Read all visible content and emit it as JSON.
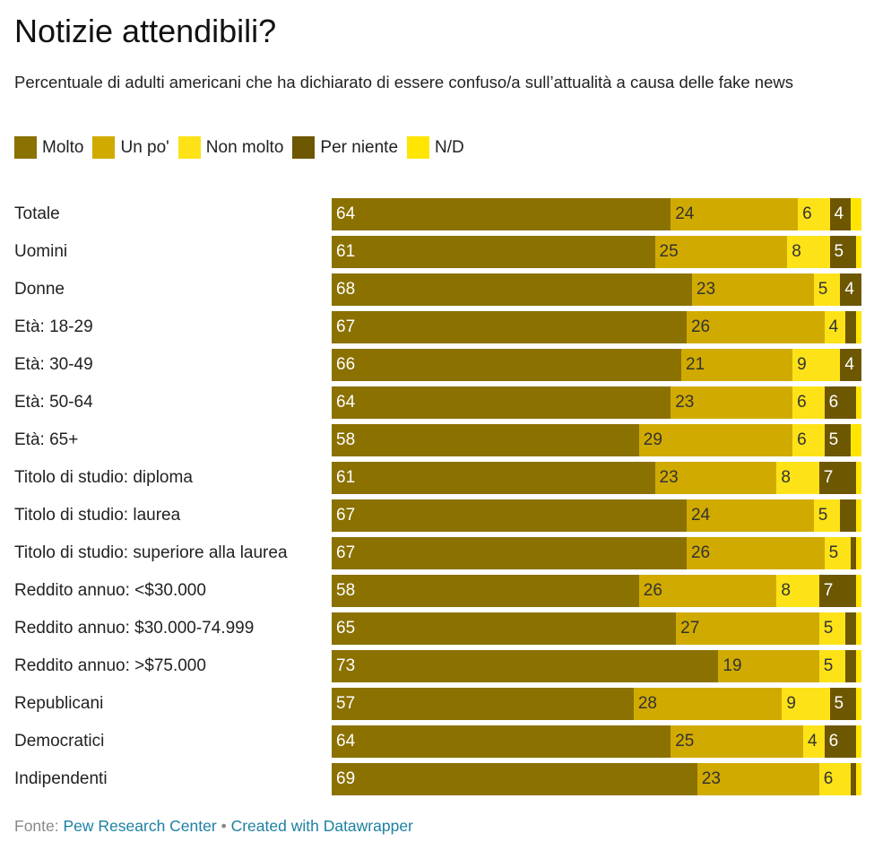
{
  "title": "Notizie attendibili?",
  "subtitle": "Percentuale di adulti americani che ha dichiarato di essere confuso/a sull’attualità a causa delle fake news",
  "footer": {
    "prefix": "Fonte:",
    "source": "Pew Research Center",
    "separator": "•",
    "credit": "Created with Datawrapper"
  },
  "colors": {
    "Molto": "#8a7100",
    "Un po'": "#d1aa00",
    "Non molto": "#fde218",
    "Per niente": "#6d5701",
    "N/D": "#ffe500"
  },
  "chart_data": {
    "type": "bar",
    "orientation": "horizontal",
    "stacked": true,
    "scale_max": 100,
    "legend_position": "top-left",
    "categories": [
      "Totale",
      "Uomini",
      "Donne",
      "Età: 18-29",
      "Età: 30-49",
      "Età: 50-64",
      "Età: 65+",
      "Titolo di studio: diploma",
      "Titolo di studio: laurea",
      "Titolo di studio: superiore alla laurea",
      "Reddito annuo: <$30.000",
      "Reddito annuo: $30.000-74.999",
      "Reddito annuo: >$75.000",
      "Republicani",
      "Democratici",
      "Indipendenti"
    ],
    "series": [
      {
        "name": "Molto",
        "values": [
          64,
          61,
          68,
          67,
          66,
          64,
          58,
          61,
          67,
          67,
          58,
          65,
          73,
          57,
          64,
          69
        ],
        "labels": [
          "64",
          "61",
          "68",
          "67",
          "66",
          "64",
          "58",
          "61",
          "67",
          "67",
          "58",
          "65",
          "73",
          "57",
          "64",
          "69"
        ]
      },
      {
        "name": "Un po'",
        "values": [
          24,
          25,
          23,
          26,
          21,
          23,
          29,
          23,
          24,
          26,
          26,
          27,
          19,
          28,
          25,
          23
        ],
        "labels": [
          "24",
          "25",
          "23",
          "26",
          "21",
          "23",
          "29",
          "23",
          "24",
          "26",
          "26",
          "27",
          "19",
          "28",
          "25",
          "23"
        ]
      },
      {
        "name": "Non molto",
        "values": [
          6,
          8,
          5,
          4,
          9,
          6,
          6,
          8,
          5,
          5,
          8,
          5,
          5,
          9,
          4,
          6
        ],
        "labels": [
          "6",
          "8",
          "5",
          "4",
          "9",
          "6",
          "6",
          "8",
          "5",
          "5",
          "8",
          "5",
          "5",
          "9",
          "4",
          "6"
        ]
      },
      {
        "name": "Per niente",
        "values": [
          4,
          5,
          4,
          2,
          4,
          6,
          5,
          7,
          3,
          1,
          7,
          2,
          2,
          5,
          6,
          1
        ],
        "labels": [
          "4",
          "5",
          "4",
          "",
          "4",
          "6",
          "5",
          "7",
          "",
          "",
          "7",
          "",
          "",
          "5",
          "6",
          ""
        ]
      },
      {
        "name": "N/D",
        "values": [
          2,
          1,
          0,
          1,
          0,
          1,
          2,
          1,
          1,
          1,
          1,
          1,
          1,
          1,
          1,
          1
        ],
        "labels": [
          "",
          "",
          "",
          "",
          "",
          "",
          "",
          "",
          "",
          "",
          "",
          "",
          "",
          "",
          "",
          ""
        ]
      }
    ]
  }
}
